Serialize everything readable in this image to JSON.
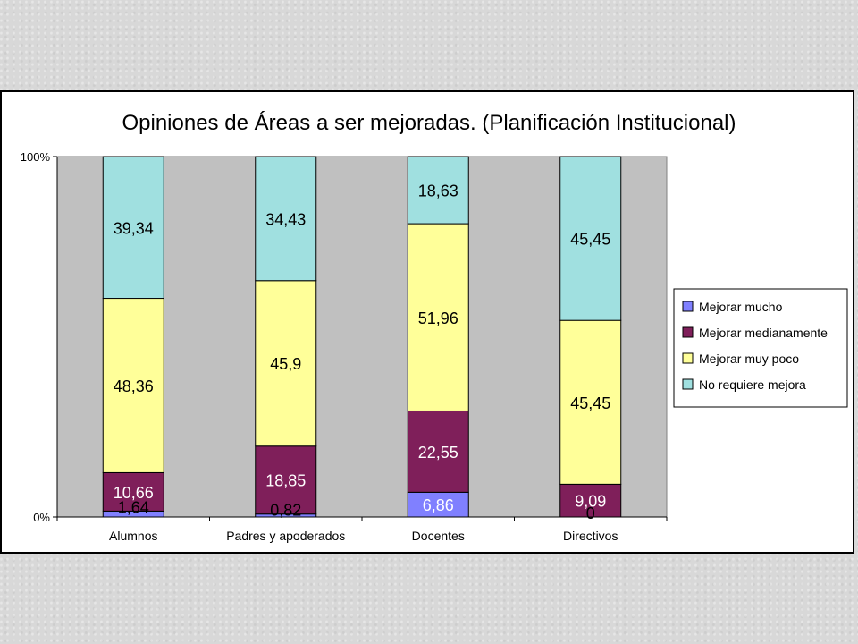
{
  "chart_data": {
    "type": "bar",
    "stacked": true,
    "normalized": true,
    "title": "Opiniones de Áreas a ser mejoradas. (Planificación Institucional)",
    "categories": [
      "Alumnos",
      "Padres y apoderados",
      "Docentes",
      "Directivos"
    ],
    "y_ticks": [
      "0%",
      "100%"
    ],
    "ylim": [
      0,
      100
    ],
    "grid": false,
    "legend_position": "right",
    "series": [
      {
        "name": "Mejorar mucho",
        "color": "#8080ff",
        "values": [
          1.64,
          0.82,
          6.86,
          0
        ],
        "labels": [
          "1,64",
          "0,82",
          "6,86",
          "0"
        ]
      },
      {
        "name": "Mejorar medianamente",
        "color": "#7f1f5a",
        "values": [
          10.66,
          18.85,
          22.55,
          9.09
        ],
        "labels": [
          "10,66",
          "18,85",
          "22,55",
          "9,09"
        ]
      },
      {
        "name": "Mejorar muy poco",
        "color": "#ffff99",
        "values": [
          48.36,
          45.9,
          51.96,
          45.45
        ],
        "labels": [
          "48,36",
          "45,9",
          "51,96",
          "45,45"
        ]
      },
      {
        "name": "No requiere mejora",
        "color": "#a0e0e0",
        "values": [
          39.34,
          34.43,
          18.63,
          45.45
        ],
        "labels": [
          "39,34",
          "34,43",
          "18,63",
          "45,45"
        ]
      }
    ]
  }
}
